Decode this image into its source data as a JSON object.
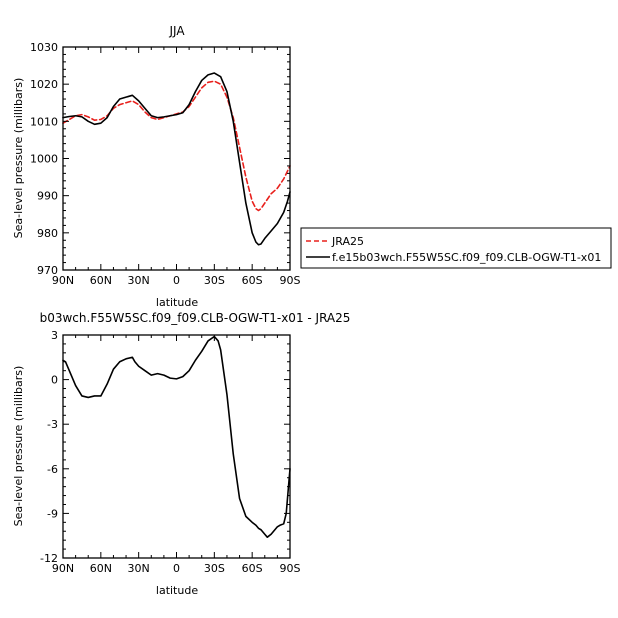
{
  "chart_data": [
    {
      "type": "line",
      "title": "JJA",
      "xlabel": "latitude",
      "ylabel": "Sea-level pressure (millibars)",
      "xlim": [
        90,
        -90
      ],
      "ylim": [
        970,
        1030
      ],
      "xticks": [
        90,
        60,
        30,
        0,
        -30,
        -60,
        -90
      ],
      "xtick_labels": [
        "90N",
        "60N",
        "30N",
        "0",
        "30S",
        "60S",
        "90S"
      ],
      "yticks": [
        970,
        980,
        990,
        1000,
        1010,
        1020,
        1030
      ],
      "ytick_labels": [
        "970",
        "980",
        "990",
        "1000",
        "1010",
        "1020",
        "1030"
      ],
      "legend_position": "right",
      "series": [
        {
          "name": "JRA25",
          "color": "#e8201c",
          "dash": "dashed",
          "x": [
            90,
            85,
            80,
            75,
            70,
            65,
            60,
            55,
            50,
            45,
            40,
            35,
            30,
            25,
            20,
            15,
            10,
            5,
            0,
            -5,
            -10,
            -15,
            -20,
            -25,
            -30,
            -35,
            -40,
            -45,
            -50,
            -55,
            -60,
            -63,
            -65,
            -67,
            -70,
            -75,
            -80,
            -85,
            -90
          ],
          "y": [
            1009.5,
            1010.5,
            1011.5,
            1011.8,
            1011.2,
            1010.3,
            1010.5,
            1011.5,
            1013.5,
            1014.5,
            1015.0,
            1015.5,
            1014.5,
            1012.5,
            1011.0,
            1010.5,
            1011.0,
            1011.5,
            1012.0,
            1012.5,
            1014.0,
            1016.5,
            1019.0,
            1020.5,
            1020.8,
            1020.0,
            1016.5,
            1011.0,
            1003.0,
            995.0,
            988.5,
            986.5,
            986.0,
            986.5,
            988.0,
            990.5,
            992.0,
            994.5,
            998.0
          ]
        },
        {
          "name": "f.e15b03wch.F55W5SC.f09_f09.CLB-OGW-T1-x01",
          "color": "#000000",
          "dash": "solid",
          "x": [
            90,
            85,
            80,
            75,
            70,
            65,
            60,
            55,
            50,
            45,
            40,
            35,
            30,
            25,
            20,
            15,
            10,
            5,
            0,
            -5,
            -10,
            -15,
            -20,
            -25,
            -30,
            -35,
            -40,
            -45,
            -50,
            -55,
            -60,
            -63,
            -65,
            -67,
            -70,
            -75,
            -80,
            -85,
            -88,
            -90
          ],
          "y": [
            1011.0,
            1011.3,
            1011.5,
            1011.2,
            1010.0,
            1009.2,
            1009.5,
            1011.0,
            1014.0,
            1016.0,
            1016.5,
            1017.0,
            1015.5,
            1013.5,
            1011.5,
            1011.0,
            1011.2,
            1011.5,
            1011.8,
            1012.3,
            1014.5,
            1018.0,
            1021.0,
            1022.5,
            1023.0,
            1022.0,
            1018.0,
            1010.0,
            999.0,
            988.0,
            980.0,
            977.5,
            976.8,
            977.0,
            978.5,
            980.5,
            982.5,
            985.5,
            988.5,
            991.0
          ]
        }
      ]
    },
    {
      "type": "line",
      "title": "b03wch.F55W5SC.f09_f09.CLB-OGW-T1-x01 - JRA25",
      "xlabel": "latitude",
      "ylabel": "Sea-level pressure (millibars)",
      "xlim": [
        90,
        -90
      ],
      "ylim": [
        -12,
        3
      ],
      "xticks": [
        90,
        60,
        30,
        0,
        -30,
        -60,
        -90
      ],
      "xtick_labels": [
        "90N",
        "60N",
        "30N",
        "0",
        "30S",
        "60S",
        "90S"
      ],
      "yticks": [
        -12,
        -9,
        -6,
        -3,
        0,
        3
      ],
      "ytick_labels": [
        "-12",
        "-9",
        "-6",
        "-3",
        "0",
        "3"
      ],
      "series": [
        {
          "color": "#000000",
          "dash": "solid",
          "x": [
            90,
            88,
            85,
            80,
            75,
            70,
            65,
            60,
            55,
            50,
            45,
            40,
            35,
            33,
            30,
            25,
            20,
            15,
            10,
            5,
            0,
            -5,
            -10,
            -15,
            -20,
            -25,
            -30,
            -33,
            -35,
            -40,
            -45,
            -50,
            -55,
            -60,
            -63,
            -65,
            -67,
            -70,
            -72,
            -75,
            -77,
            -80,
            -82,
            -85,
            -87,
            -90
          ],
          "y": [
            1.3,
            1.2,
            0.6,
            -0.4,
            -1.1,
            -1.2,
            -1.1,
            -1.1,
            -0.3,
            0.7,
            1.2,
            1.4,
            1.5,
            1.2,
            0.9,
            0.6,
            0.3,
            0.4,
            0.3,
            0.1,
            0.05,
            0.2,
            0.6,
            1.3,
            1.9,
            2.6,
            2.9,
            2.6,
            2.0,
            -1.0,
            -5.0,
            -8.0,
            -9.2,
            -9.6,
            -9.8,
            -10.0,
            -10.1,
            -10.4,
            -10.6,
            -10.4,
            -10.2,
            -9.9,
            -9.8,
            -9.7,
            -9.0,
            -6.0
          ]
        }
      ]
    }
  ]
}
